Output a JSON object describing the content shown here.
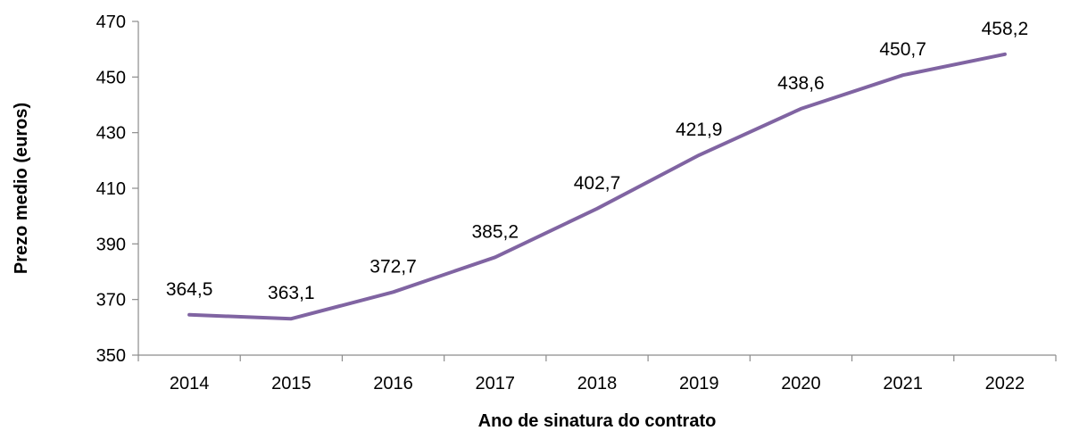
{
  "chart_data": {
    "type": "line",
    "categories": [
      "2014",
      "2015",
      "2016",
      "2017",
      "2018",
      "2019",
      "2020",
      "2021",
      "2022"
    ],
    "series": [
      {
        "values": [
          364.5,
          363.1,
          372.7,
          385.2,
          402.7,
          421.9,
          438.6,
          450.7,
          458.2
        ],
        "labels": [
          "364,5",
          "363,1",
          "372,7",
          "385,2",
          "402,7",
          "421,9",
          "438,6",
          "450,7",
          "458,2"
        ],
        "color": "#8064a2"
      }
    ],
    "xlabel": "Ano de sinatura do contrato",
    "ylabel": "Prezo medio (euros)",
    "ylim": [
      350,
      470
    ],
    "yticks": [
      350,
      370,
      390,
      410,
      430,
      450,
      470
    ],
    "grid": false,
    "legend": "none"
  }
}
